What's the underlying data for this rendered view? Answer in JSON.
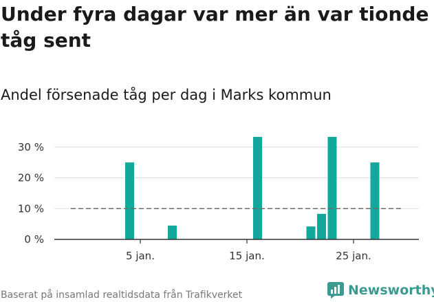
{
  "title": "Under fyra dagar var mer än var tionde tåg sent",
  "subtitle": "Andel försenade tåg per dag i Marks kommun",
  "source": "Baserat på insamlad realtidsdata från Trafikverket",
  "brand": {
    "name": "Newsworthy"
  },
  "colors": {
    "bar": "#12a89c",
    "reference_line": "#6b6b6b",
    "grid": "#dddddd",
    "axis": "#333333",
    "brand": "#3a9a92"
  },
  "chart_data": {
    "type": "bar",
    "x_unit": "day of January",
    "x": [
      1,
      2,
      3,
      4,
      5,
      6,
      7,
      8,
      9,
      10,
      11,
      12,
      13,
      14,
      15,
      16,
      17,
      18,
      19,
      20,
      21,
      22,
      23,
      24,
      25,
      26,
      27,
      28,
      29,
      30,
      31
    ],
    "values": [
      0,
      0,
      0,
      25,
      0,
      0,
      0,
      4.5,
      0,
      0,
      0,
      0,
      0,
      0,
      0,
      33.3,
      0,
      0,
      0,
      0,
      4.2,
      8.3,
      33.3,
      0,
      0,
      0,
      25,
      0,
      0,
      0,
      0
    ],
    "ylim": [
      0,
      33.3
    ],
    "y_ticks": [
      0,
      10,
      20,
      30
    ],
    "y_tick_labels": [
      "0 %",
      "10 %",
      "20 %",
      "30 %"
    ],
    "x_ticks": [
      5,
      15,
      25
    ],
    "x_tick_labels": [
      "5 jan.",
      "15 jan.",
      "25 jan."
    ],
    "reference_line": {
      "value": 10,
      "style": "dashed"
    },
    "grid": "horizontal",
    "legend": "none"
  }
}
